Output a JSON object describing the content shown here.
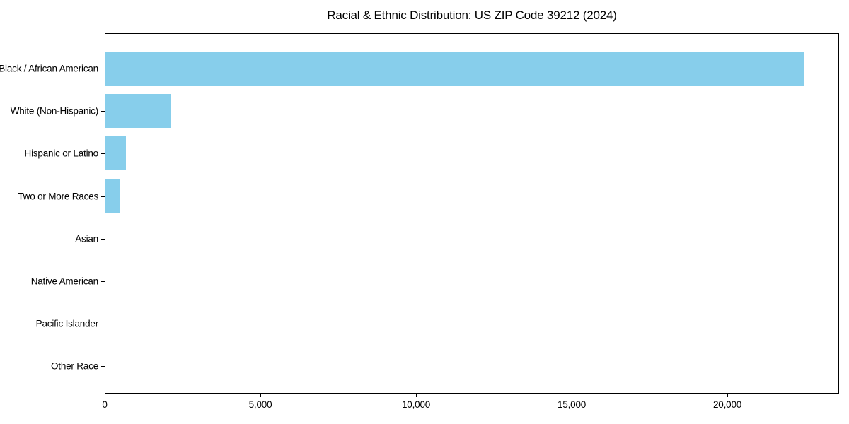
{
  "chart_data": {
    "type": "bar",
    "orientation": "horizontal",
    "title": "Racial & Ethnic Distribution: US ZIP Code 39212 (2024)",
    "categories": [
      "Black / African American",
      "White (Non-Hispanic)",
      "Hispanic or Latino",
      "Two or More Races",
      "Asian",
      "Native American",
      "Pacific Islander",
      "Other Race"
    ],
    "values": [
      22450,
      2090,
      660,
      480,
      0,
      0,
      0,
      0
    ],
    "xlabel": "",
    "ylabel": "",
    "xlim": [
      0,
      23590
    ],
    "x_ticks": [
      0,
      5000,
      10000,
      15000,
      20000
    ],
    "x_tick_labels": [
      "0",
      "5,000",
      "10,000",
      "15,000",
      "20,000"
    ],
    "bar_color": "#87CEEB",
    "frame_color": "#000000",
    "text_color": "#000000",
    "background": "#FFFFFF",
    "grid": false,
    "legend": null
  }
}
